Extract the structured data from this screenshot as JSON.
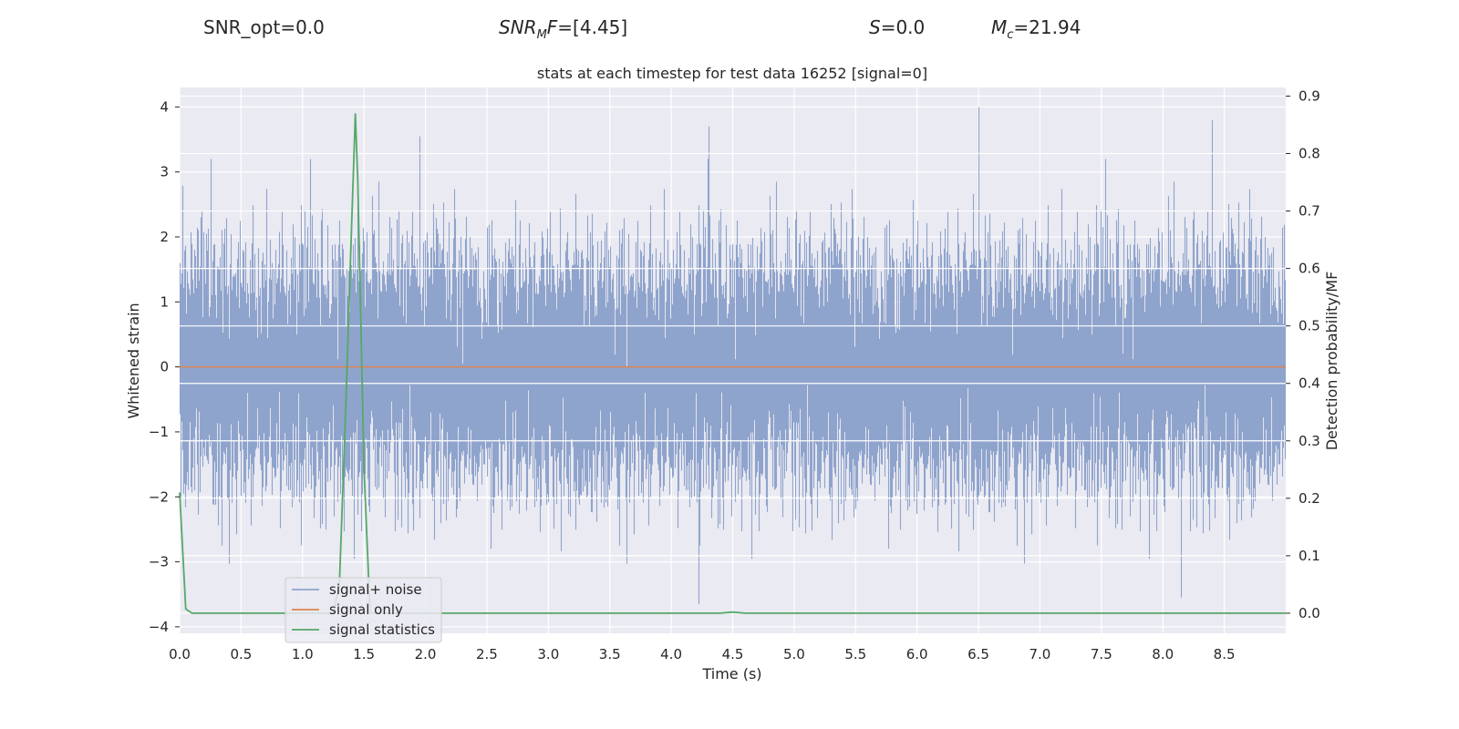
{
  "header": {
    "snr_opt": "SNR_opt=0.0",
    "snr_mf_base": "SNR",
    "snr_mf_sub": "M",
    "snr_mf_rest": "F",
    "snr_mf_value": "=[4.45]",
    "s_var": "S",
    "s_value": "=0.0",
    "mc_var": "M",
    "mc_sub": "c",
    "mc_value": "=21.94"
  },
  "chart_data": {
    "type": "line",
    "title": "stats at each timestep for test data 16252 [signal=0]",
    "xlabel": "Time (s)",
    "ylabel": "Whitened strain",
    "y2label": "Detection probability/MF",
    "xlim": [
      0.0,
      9.0
    ],
    "ylim": [
      -4.1,
      4.3
    ],
    "y2lim": [
      -0.035,
      0.915
    ],
    "x_ticks": [
      "0.0",
      "0.5",
      "1.0",
      "1.5",
      "2.0",
      "2.5",
      "3.0",
      "3.5",
      "4.0",
      "4.5",
      "5.0",
      "5.5",
      "6.0",
      "6.5",
      "7.0",
      "7.5",
      "8.0",
      "8.5"
    ],
    "y_ticks": [
      "-4",
      "-3",
      "-2",
      "-1",
      "0",
      "1",
      "2",
      "3",
      "4"
    ],
    "y2_ticks": [
      "0.0",
      "0.1",
      "0.2",
      "0.3",
      "0.4",
      "0.5",
      "0.6",
      "0.7",
      "0.8",
      "0.9"
    ],
    "grid": true,
    "legend_position": "lower-left",
    "colors": {
      "background": "#eaeaf2",
      "noise": "#8fa4cc",
      "signal_only": "#dd8452",
      "statistics": "#55a868"
    },
    "series": [
      {
        "name": "signal+ noise",
        "axis": "left",
        "description_values": "whitened noise, approx. N(0,1), peaks near 4.0 at t=6.5",
        "peaks": [
          [
            0.25,
            3.2
          ],
          [
            1.45,
            3.0
          ],
          [
            1.95,
            3.55
          ],
          [
            4.3,
            3.7
          ],
          [
            6.5,
            4.0
          ],
          [
            8.4,
            3.8
          ],
          [
            4.22,
            -3.65
          ],
          [
            8.15,
            -3.55
          ]
        ]
      },
      {
        "name": "signal only",
        "axis": "left",
        "x": [
          0.0,
          9.0
        ],
        "y": [
          0.0,
          0.0
        ]
      },
      {
        "name": "signal statistics",
        "axis": "right",
        "x": [
          0.0,
          0.05,
          0.1,
          0.15,
          1.25,
          1.3,
          1.35,
          1.4,
          1.43,
          1.45,
          1.5,
          1.55,
          1.6,
          4.4,
          4.5,
          4.6,
          9.0
        ],
        "y": [
          0.21,
          0.0075,
          0.0,
          0.0,
          0.0,
          0.05,
          0.35,
          0.68,
          0.87,
          0.75,
          0.25,
          0.0,
          0.0,
          0.0,
          0.002,
          0.0,
          0.0
        ]
      }
    ]
  }
}
